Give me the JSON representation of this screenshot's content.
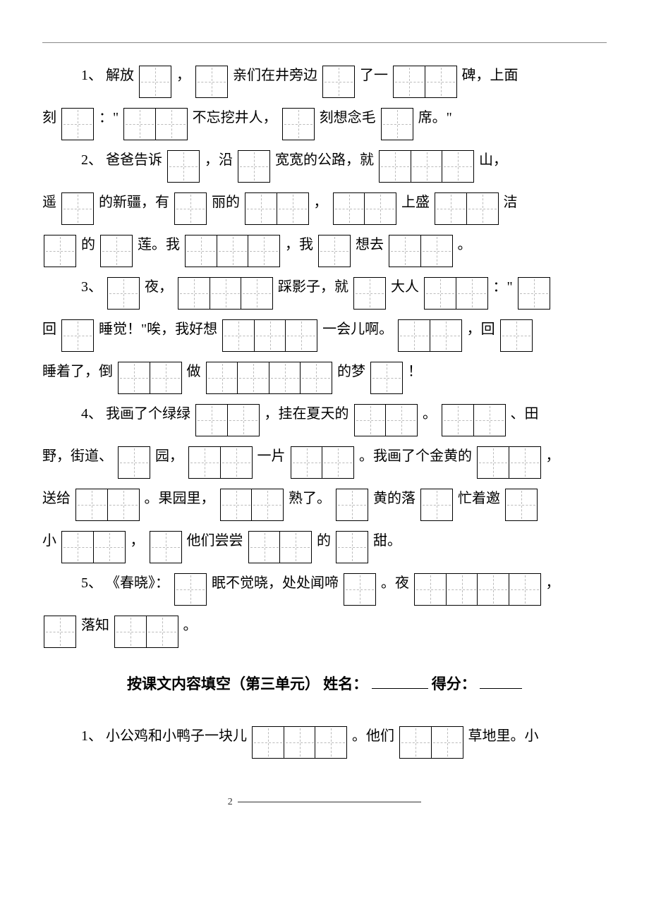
{
  "q1": {
    "num": "1、",
    "t1": "解放",
    "t2": "，",
    "t3": "亲们在井旁边",
    "t4": "了一",
    "t5": "碑，上面",
    "t6": "刻",
    "t7": "：\"",
    "t8": "不忘挖井人，",
    "t9": "刻想念毛",
    "t10": "席。\""
  },
  "q2": {
    "num": "2、",
    "t1": "爸爸告诉",
    "t2": "，沿",
    "t3": "宽宽的公路，就",
    "t4": "山，",
    "t5": "遥",
    "t6": "的新疆，有",
    "t7": "丽的",
    "t8": "，",
    "t9": "上盛",
    "t10": "洁",
    "t11": "的",
    "t12": "莲。我",
    "t13": "，我",
    "t14": "想去",
    "t15": "。"
  },
  "q3": {
    "num": "3、",
    "t1": "夜，",
    "t2": "踩影子，就",
    "t3": "大人",
    "t4": "：\"",
    "t5": "回",
    "t6": "睡觉！\"唉，我好想",
    "t7": "一会儿啊。",
    "t8": "，回",
    "t9": "睡着了，倒",
    "t10": "做",
    "t11": "的梦",
    "t12": "！"
  },
  "q4": {
    "num": "4、",
    "t1": "我画了个绿绿",
    "t2": "，挂在夏天的",
    "t3": "。",
    "t4": "、田",
    "t5": "野，街道、",
    "t6": "园，",
    "t7": "一片",
    "t8": "。我画了个金黄的",
    "t9": "，",
    "t10": "送给",
    "t11": "。果园里，",
    "t12": "熟了。",
    "t13": "黄的落",
    "t14": "忙着邀",
    "t15": "小",
    "t16": "，",
    "t17": "他们尝尝",
    "t18": "的",
    "t19": "甜。"
  },
  "q5": {
    "num": "5、",
    "t1": "《春晓》：",
    "t2": "眠不觉晓，处处闻啼",
    "t3": "。夜",
    "t4": "，",
    "t5": "落知",
    "t6": "。"
  },
  "section": {
    "title": "按课文内容填空（第三单元）  姓名：",
    "score": "  得分："
  },
  "q6": {
    "num": "1、",
    "t1": "小公鸡和小鸭子一块儿",
    "t2": "。他们",
    "t3": "草地里。小"
  },
  "footer": {
    "page": "2"
  },
  "boxes": {
    "b1": 1,
    "b2": 2,
    "b3": 3
  }
}
